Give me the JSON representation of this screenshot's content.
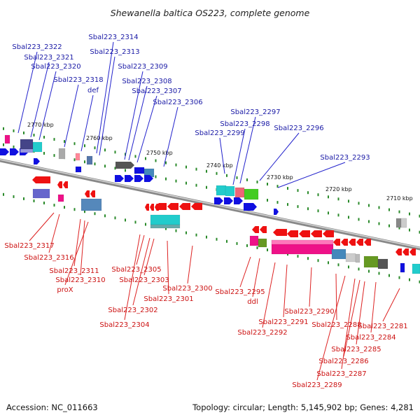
{
  "title": "Shewanella baltica OS223, complete genome",
  "footer": {
    "accession": "Accession: NC_011663",
    "summary": "Topology: circular; Length: 5,145,902 bp; Genes: 4,281"
  },
  "colors": {
    "backbone": "#999999",
    "upper_label": "#1a1aa6",
    "lower_label": "#cc1111",
    "tick": "#2a8a2a"
  },
  "scale_labels": [
    "2770 kbp",
    "2760 kbp",
    "2750 kbp",
    "2740 kbp",
    "2730 kbp",
    "2720 kbp",
    "2710 kbp"
  ],
  "upper_labels": [
    "Sbal223_2322",
    "Sbal223_2321",
    "Sbal223_2320",
    "Sbal223_2318",
    "def",
    "Sbal223_2314",
    "Sbal223_2313",
    "Sbal223_2309",
    "Sbal223_2308",
    "Sbal223_2307",
    "Sbal223_2306",
    "Sbal223_2297",
    "Sbal223_2298",
    "Sbal223_2299",
    "Sbal223_2296",
    "Sbal223_2293"
  ],
  "lower_labels": [
    "Sbal223_2317",
    "Sbal223_2316",
    "Sbal223_2311",
    "Sbal223_2310",
    "proX",
    "Sbal223_2305",
    "Sbal223_2303",
    "Sbal223_2304",
    "Sbal223_2302",
    "Sbal223_2301",
    "Sbal223_2300",
    "Sbal223_2295",
    "ddl",
    "Sbal223_2292",
    "Sbal223_2291",
    "Sbal223_2290",
    "Sbal223_2288",
    "Sbal223_2289",
    "Sbal223_2287",
    "Sbal223_2286",
    "Sbal223_2285",
    "Sbal223_2284",
    "Sbal223_2281"
  ]
}
